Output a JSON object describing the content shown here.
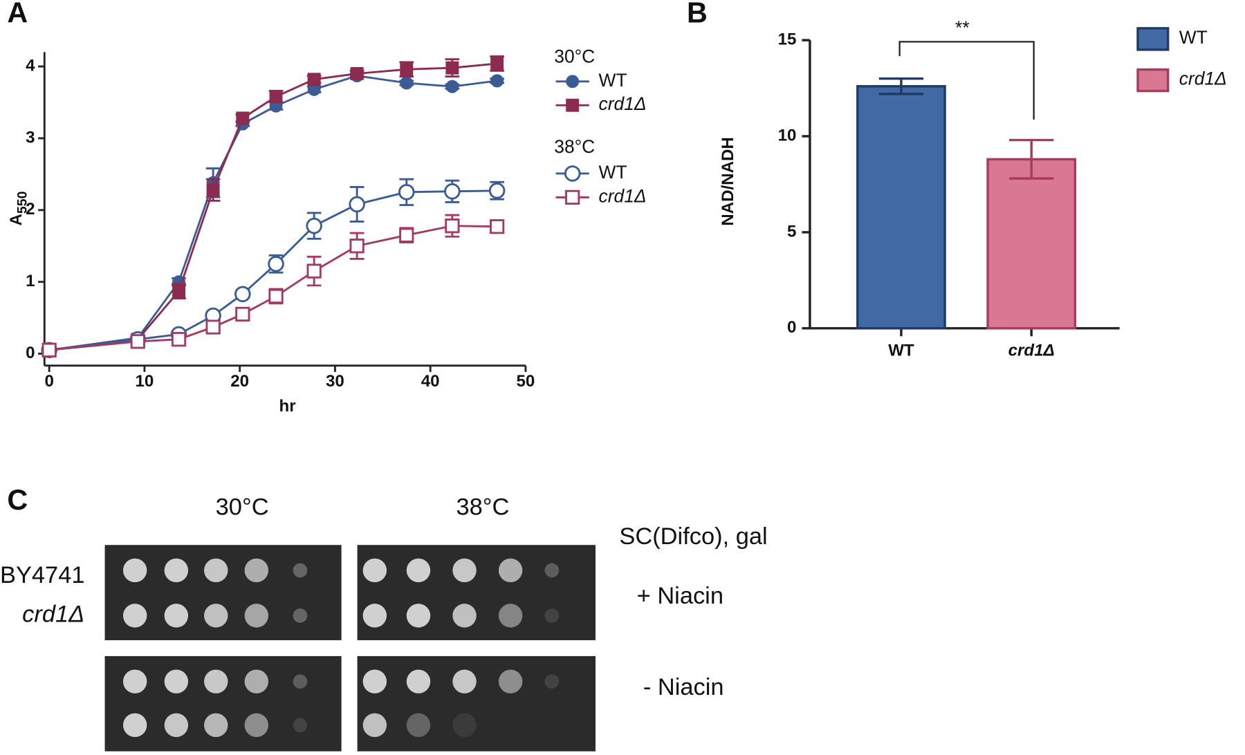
{
  "chart_data": [
    {
      "type": "line",
      "panel_label": "A",
      "x_label": "hr",
      "y_label": {
        "text": "A",
        "subscript": "550"
      },
      "x": [
        0,
        9.3,
        13.6,
        17.2,
        20.3,
        23.8,
        27.8,
        32.3,
        37.5,
        42.3,
        47
      ],
      "xlim": [
        -0.5,
        50
      ],
      "xticks": [
        0,
        10,
        20,
        30,
        40,
        50
      ],
      "ylim": [
        -0.166,
        4.2
      ],
      "yticks": [
        0,
        1,
        2,
        3,
        4
      ],
      "series_groups": [
        {
          "name": "30°C",
          "series": [
            {
              "name": "WT",
              "color": "#3b5b94",
              "marker": "circle",
              "filled": true,
              "values": [
                0.05,
                0.22,
                1.0,
                2.38,
                3.2,
                3.45,
                3.68,
                3.87,
                3.77,
                3.72,
                3.8
              ],
              "errors": [
                0.02,
                0.02,
                0.05,
                0.2,
                0.03,
                0.05,
                0.04,
                0.03,
                0.03,
                0.03,
                0.03
              ]
            },
            {
              "name": "crd1Δ",
              "color": "#8c2a50",
              "marker": "square",
              "filled": true,
              "values": [
                0.05,
                0.2,
                0.87,
                2.28,
                3.28,
                3.58,
                3.82,
                3.9,
                3.96,
                3.98,
                4.04
              ],
              "errors": [
                0.02,
                0.02,
                0.1,
                0.15,
                0.05,
                0.08,
                0.05,
                0.04,
                0.1,
                0.12,
                0.1
              ]
            }
          ]
        },
        {
          "name": "38°C",
          "series": [
            {
              "name": "WT",
              "color": "#3b5b94",
              "marker": "circle",
              "filled": false,
              "values": [
                0.05,
                0.2,
                0.27,
                0.53,
                0.83,
                1.25,
                1.78,
                2.08,
                2.25,
                2.26,
                2.27
              ],
              "errors": [
                0.02,
                0.02,
                0.04,
                0.05,
                0.05,
                0.12,
                0.18,
                0.24,
                0.18,
                0.15,
                0.12
              ]
            },
            {
              "name": "crd1Δ",
              "color": "#a33a60",
              "marker": "square",
              "filled": false,
              "values": [
                0.05,
                0.17,
                0.2,
                0.37,
                0.55,
                0.8,
                1.15,
                1.5,
                1.65,
                1.78,
                1.77
              ],
              "errors": [
                0.02,
                0.02,
                0.03,
                0.05,
                0.05,
                0.1,
                0.2,
                0.18,
                0.1,
                0.15,
                0.05
              ]
            }
          ]
        }
      ]
    },
    {
      "type": "bar",
      "panel_label": "B",
      "y_label": "NAD/NADH",
      "categories": [
        "WT",
        "crd1Δ"
      ],
      "values": [
        12.6,
        8.8
      ],
      "errors": [
        0.4,
        1.0
      ],
      "colors": [
        "#4169a3",
        "#d97893"
      ],
      "edge_colors": [
        "#1f3a66",
        "#a83a5e"
      ],
      "ylim": [
        0,
        15
      ],
      "yticks": [
        0,
        5,
        10,
        15
      ],
      "significance": "**",
      "legend": "top-right"
    }
  ],
  "panel_c": {
    "panel_label": "C",
    "columns": [
      "30°C",
      "38°C"
    ],
    "medium": "SC(Difco), gal",
    "strains": [
      "BY4741",
      "crd1Δ"
    ],
    "conditions": [
      "+ Niacin",
      "- Niacin"
    ]
  }
}
